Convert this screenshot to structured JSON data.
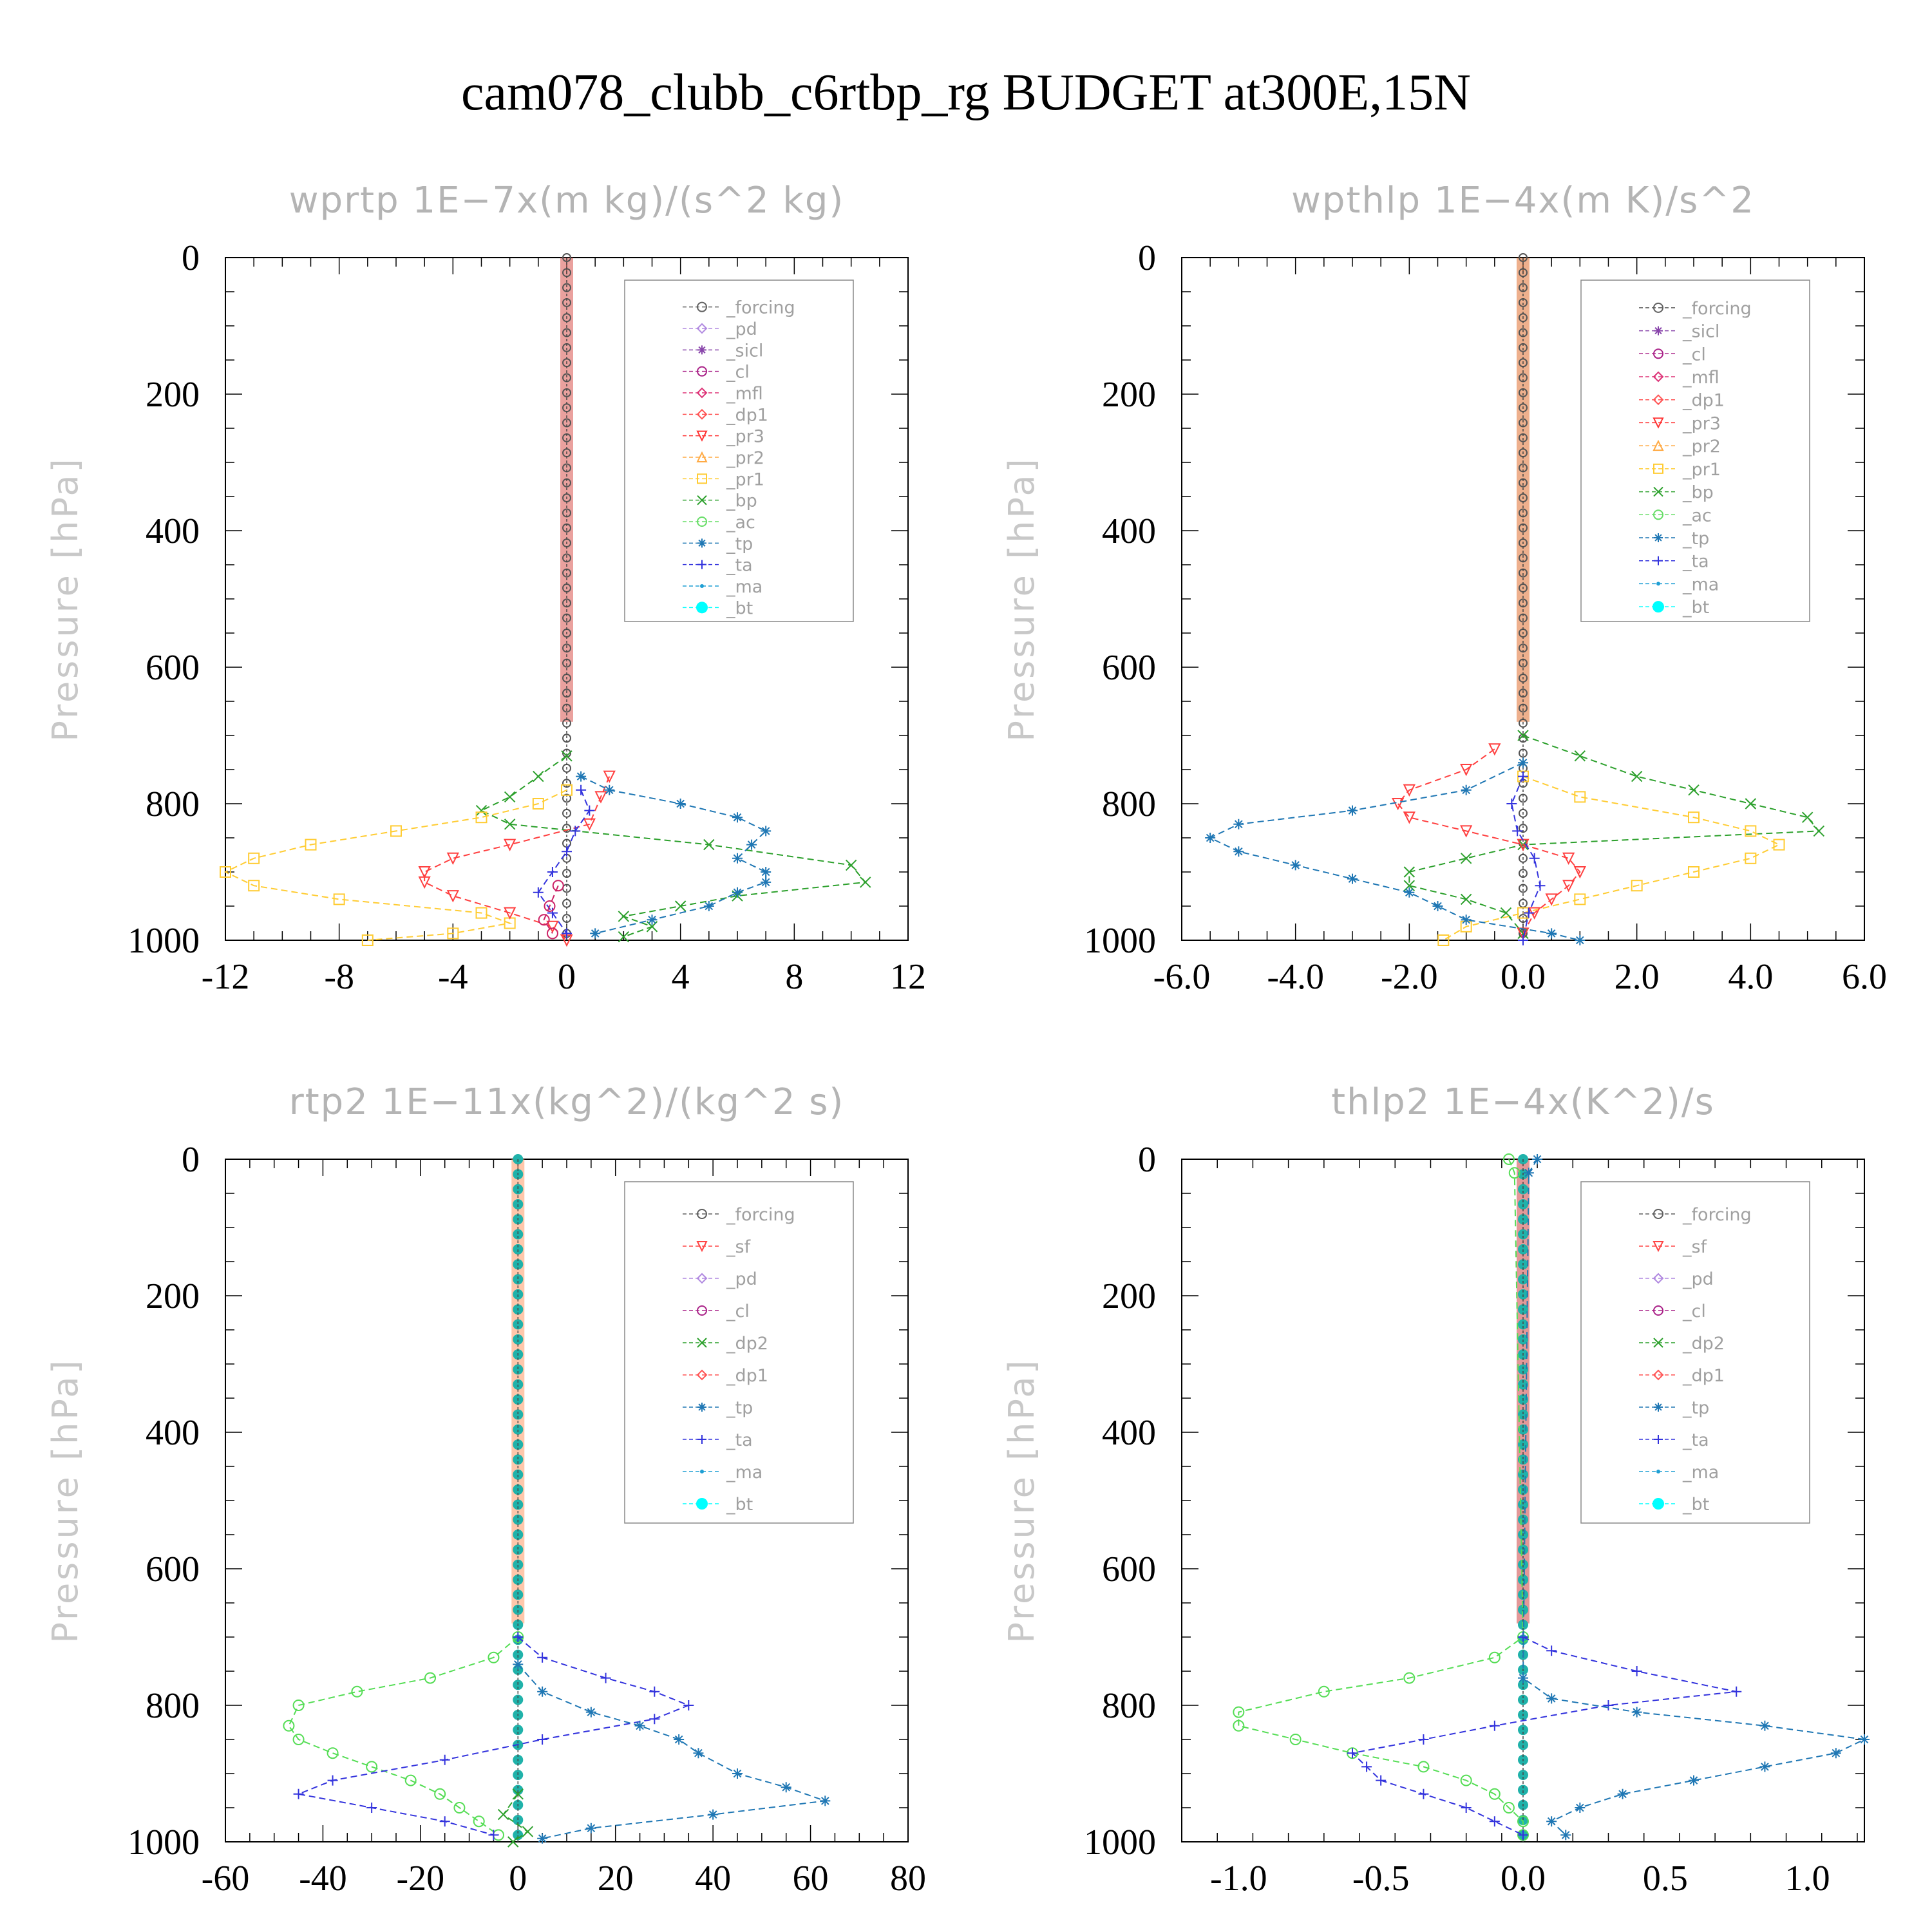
{
  "title": "cam078_clubb_c6rtbp_rg  BUDGET at300E,15N",
  "ylabel": "Pressure [hPa]",
  "yticks": [
    0,
    200,
    400,
    600,
    800,
    1000
  ],
  "chart_data": [
    {
      "type": "line",
      "title": "wprtp   1E−7x(m kg)/(s^2 kg)",
      "xlim": [
        -12,
        12
      ],
      "xticks": [
        "-12",
        "-8",
        "-4",
        "0",
        "4",
        "8",
        "12"
      ],
      "xtick_values": [
        -12,
        -8,
        -4,
        0,
        4,
        8,
        12
      ],
      "ylim": [
        0,
        1000
      ],
      "ylabel": "Pressure [hPa]",
      "legend": [
        "_forcing",
        "_pd",
        "_sicl",
        "_cl",
        "_mfl",
        "_dp1",
        "_pr3",
        "_pr2",
        "_pr1",
        "_bp",
        "_ac",
        "_tp",
        "_ta",
        "_ma",
        "_bt"
      ],
      "series": [
        {
          "name": "_bp",
          "color": "#2ca02c",
          "marker": "x",
          "p": [
            730,
            760,
            790,
            810,
            830,
            860,
            890,
            915,
            935,
            950,
            965,
            980,
            995
          ],
          "v": [
            0,
            -1,
            -2,
            -3,
            -2,
            5,
            10,
            10.5,
            6,
            4,
            2,
            3,
            2
          ]
        },
        {
          "name": "_pr1",
          "color": "#ffcc33",
          "marker": "square",
          "p": [
            780,
            800,
            820,
            840,
            860,
            880,
            900,
            920,
            940,
            960,
            975,
            990,
            1000
          ],
          "v": [
            0,
            -1,
            -3,
            -6,
            -9,
            -11,
            -12,
            -11,
            -8,
            -3,
            -2,
            -4,
            -7
          ]
        },
        {
          "name": "_pr3",
          "color": "#ff4040",
          "marker": "tri-down",
          "p": [
            760,
            790,
            830,
            860,
            880,
            900,
            915,
            935,
            960,
            980,
            1000
          ],
          "v": [
            1.5,
            1.2,
            0.8,
            -2,
            -4,
            -5,
            -5,
            -4,
            -2,
            -0.5,
            0
          ]
        },
        {
          "name": "_tp",
          "color": "#1f77b4",
          "marker": "star",
          "p": [
            760,
            780,
            800,
            820,
            840,
            860,
            880,
            900,
            915,
            930,
            950,
            970,
            990
          ],
          "v": [
            0.5,
            1.5,
            4,
            6,
            7,
            6.5,
            6,
            7,
            7,
            6,
            5,
            3,
            1
          ]
        },
        {
          "name": "_ta",
          "color": "#3333dd",
          "marker": "plus",
          "p": [
            780,
            810,
            840,
            870,
            900,
            930,
            960,
            990
          ],
          "v": [
            0.5,
            0.8,
            0.3,
            0,
            -0.5,
            -1,
            -0.5,
            0
          ]
        },
        {
          "name": "_mfl",
          "color": "#cc2266",
          "marker": "circle",
          "p": [
            920,
            950,
            970,
            990
          ],
          "v": [
            -0.3,
            -0.6,
            -0.8,
            -0.5
          ]
        }
      ]
    },
    {
      "type": "line",
      "title": "wpthlp   1E−4x(m K)/s^2",
      "xlim": [
        -6,
        6
      ],
      "xticks": [
        "-6.0",
        "-4.0",
        "-2.0",
        "0.0",
        "2.0",
        "4.0",
        "6.0"
      ],
      "xtick_values": [
        -6,
        -4,
        -2,
        0,
        2,
        4,
        6
      ],
      "ylim": [
        0,
        1000
      ],
      "ylabel": "Pressure [hPa]",
      "legend": [
        "_forcing",
        "_sicl",
        "_cl",
        "_mfl",
        "_dp1",
        "_pr3",
        "_pr2",
        "_pr1",
        "_bp",
        "_ac",
        "_tp",
        "_ta",
        "_ma",
        "_bt"
      ],
      "series": [
        {
          "name": "_bp",
          "color": "#2ca02c",
          "marker": "x",
          "p": [
            700,
            730,
            760,
            780,
            800,
            820,
            840,
            860,
            880,
            900,
            920,
            940,
            960,
            990
          ],
          "v": [
            0,
            1,
            2,
            3,
            4,
            5,
            5.2,
            0,
            -1,
            -2,
            -2,
            -1,
            -0.3,
            0
          ]
        },
        {
          "name": "_pr1",
          "color": "#ffcc33",
          "marker": "square",
          "p": [
            760,
            790,
            820,
            840,
            860,
            880,
            900,
            920,
            940,
            960,
            980,
            1000
          ],
          "v": [
            0,
            1,
            3,
            4,
            4.5,
            4,
            3,
            2,
            1,
            0,
            -1,
            -1.4
          ]
        },
        {
          "name": "_pr3",
          "color": "#ff4040",
          "marker": "tri-down",
          "p": [
            720,
            750,
            780,
            800,
            820,
            840,
            860,
            880,
            900,
            920,
            940,
            960,
            990
          ],
          "v": [
            -0.5,
            -1,
            -2,
            -2.2,
            -2,
            -1,
            0,
            0.8,
            1,
            0.8,
            0.5,
            0.2,
            0
          ]
        },
        {
          "name": "_tp",
          "color": "#1f77b4",
          "marker": "star",
          "p": [
            740,
            780,
            810,
            830,
            850,
            870,
            890,
            910,
            930,
            950,
            970,
            990,
            1000
          ],
          "v": [
            0,
            -1,
            -3,
            -5,
            -5.5,
            -5,
            -4,
            -3,
            -2,
            -1.5,
            -1,
            0.5,
            1
          ]
        },
        {
          "name": "_ta",
          "color": "#3333dd",
          "marker": "plus",
          "p": [
            760,
            800,
            840,
            880,
            920,
            960,
            1000
          ],
          "v": [
            0,
            -0.2,
            -0.1,
            0.2,
            0.3,
            0.1,
            0
          ]
        }
      ]
    },
    {
      "type": "line",
      "title": "rtp2   1E−11x(kg^2)/(kg^2 s)",
      "xlim": [
        -60,
        80
      ],
      "xticks": [
        "-60",
        "-40",
        "-20",
        "0",
        "20",
        "40",
        "60",
        "80"
      ],
      "xtick_values": [
        -60,
        -40,
        -20,
        0,
        20,
        40,
        60,
        80
      ],
      "ylim": [
        0,
        1000
      ],
      "ylabel": "Pressure [hPa]",
      "legend": [
        "_forcing",
        "_sf",
        "_pd",
        "_cl",
        "_dp2",
        "_dp1",
        "_tp",
        "_ta",
        "_ma",
        "_bt"
      ],
      "series": [
        {
          "name": "_dp1",
          "color": "#55dd55",
          "marker": "circle",
          "p": [
            700,
            730,
            760,
            780,
            800,
            830,
            850,
            870,
            890,
            910,
            930,
            950,
            970,
            990
          ],
          "v": [
            0,
            -5,
            -18,
            -33,
            -45,
            -47,
            -45,
            -38,
            -30,
            -22,
            -16,
            -12,
            -8,
            -4
          ]
        },
        {
          "name": "_ta",
          "color": "#3333dd",
          "marker": "plus",
          "p": [
            700,
            730,
            760,
            780,
            800,
            820,
            850,
            880,
            910,
            930,
            950,
            970,
            990
          ],
          "v": [
            0,
            5,
            18,
            28,
            35,
            28,
            5,
            -15,
            -38,
            -45,
            -30,
            -15,
            -5
          ]
        },
        {
          "name": "_tp",
          "color": "#1f77b4",
          "marker": "star",
          "p": [
            740,
            780,
            810,
            830,
            850,
            870,
            900,
            920,
            940,
            960,
            980,
            995
          ],
          "v": [
            0,
            5,
            15,
            25,
            33,
            37,
            45,
            55,
            63,
            40,
            15,
            5
          ]
        },
        {
          "name": "_dp2",
          "color": "#2ca02c",
          "marker": "x",
          "p": [
            930,
            960,
            985,
            1000
          ],
          "v": [
            0,
            -3,
            2,
            -1
          ]
        }
      ]
    },
    {
      "type": "line",
      "title": "thlp2   1E−4x(K^2)/s",
      "xlim": [
        -1.2,
        1.2
      ],
      "xticks": [
        "-1.0",
        "-0.5",
        "0.0",
        "0.5",
        "1.0"
      ],
      "xtick_values": [
        -1,
        -0.5,
        0,
        0.5,
        1
      ],
      "ylim": [
        0,
        1000
      ],
      "ylabel": "Pressure [hPa]",
      "legend": [
        "_forcing",
        "_sf",
        "_pd",
        "_cl",
        "_dp2",
        "_dp1",
        "_tp",
        "_ta",
        "_ma",
        "_bt"
      ],
      "series": [
        {
          "name": "_dp1",
          "color": "#55dd55",
          "marker": "circle",
          "p": [
            0,
            20,
            700,
            730,
            760,
            780,
            810,
            830,
            850,
            870,
            890,
            910,
            930,
            950,
            970,
            990
          ],
          "v": [
            -0.05,
            -0.03,
            0,
            -0.1,
            -0.4,
            -0.7,
            -1.0,
            -1.0,
            -0.8,
            -0.6,
            -0.35,
            -0.2,
            -0.1,
            -0.05,
            0,
            0
          ]
        },
        {
          "name": "_ta",
          "color": "#3333dd",
          "marker": "plus",
          "p": [
            700,
            720,
            750,
            780,
            800,
            830,
            850,
            870,
            890,
            910,
            930,
            950,
            970,
            990
          ],
          "v": [
            0,
            0.1,
            0.4,
            0.75,
            0.3,
            -0.1,
            -0.35,
            -0.6,
            -0.55,
            -0.5,
            -0.35,
            -0.2,
            -0.1,
            0
          ]
        },
        {
          "name": "_tp",
          "color": "#1f77b4",
          "marker": "star",
          "p": [
            0,
            20,
            760,
            790,
            810,
            830,
            850,
            870,
            890,
            910,
            930,
            950,
            970,
            990
          ],
          "v": [
            0.05,
            0.02,
            0,
            0.1,
            0.4,
            0.85,
            1.2,
            1.1,
            0.85,
            0.6,
            0.35,
            0.2,
            0.1,
            0.15
          ]
        }
      ]
    }
  ]
}
